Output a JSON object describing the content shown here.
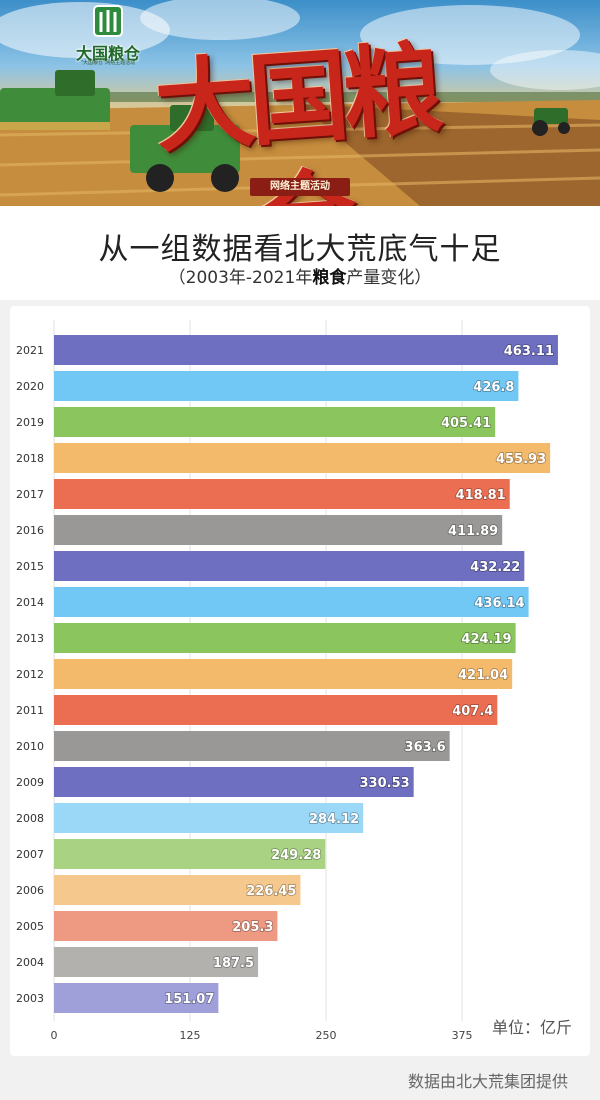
{
  "banner": {
    "logo_text": "大国粮仓",
    "logo_subtitle": "\"大国粮仓\"网络主题活动",
    "main_text": "大国粮仓",
    "tag_text": "网络主题活动"
  },
  "header": {
    "title": "从一组数据看北大荒底气十足",
    "subtitle_open": "（",
    "subtitle_pre": "2003年-2021年",
    "subtitle_bold": "粮食",
    "subtitle_post": "产量变化",
    "subtitle_close": "）"
  },
  "unit_label": "单位：亿斤",
  "source_label": "数据由北大荒集团提供",
  "colors": {
    "cycle": [
      "#6e6fc1",
      "#72c8f5",
      "#8ac55e",
      "#f4ba6c",
      "#ec6e52",
      "#999896"
    ],
    "cycle_light": [
      "#9f9fd9",
      "#9bd7f7",
      "#a9d383",
      "#f5c88e",
      "#ee9a83",
      "#b2b1ae"
    ]
  },
  "chart_data": {
    "type": "bar",
    "orientation": "horizontal",
    "categories": [
      "2021",
      "2020",
      "2019",
      "2018",
      "2017",
      "2016",
      "2015",
      "2014",
      "2013",
      "2012",
      "2011",
      "2010",
      "2009",
      "2008",
      "2007",
      "2006",
      "2005",
      "2004",
      "2003"
    ],
    "values": [
      463.11,
      426.8,
      405.41,
      455.93,
      418.81,
      411.89,
      432.22,
      436.14,
      424.19,
      421.04,
      407.4,
      363.6,
      330.53,
      284.12,
      249.28,
      226.45,
      205.3,
      187.5,
      151.07
    ],
    "value_labels": [
      "463.11",
      "426.8",
      "405.41",
      "455.93",
      "418.81",
      "411.89",
      "432.22",
      "436.14",
      "424.19",
      "421.04",
      "407.4",
      "363.6",
      "330.53",
      "284.12",
      "249.28",
      "226.45",
      "205.3",
      "187.5",
      "151.07"
    ],
    "x_ticks": [
      "0",
      "125",
      "250",
      "375"
    ],
    "x_tick_values": [
      0,
      125,
      250,
      375
    ],
    "xlim": [
      0,
      465
    ],
    "title": "从一组数据看北大荒底气十足",
    "xlabel": "",
    "ylabel": "",
    "grid": true
  }
}
